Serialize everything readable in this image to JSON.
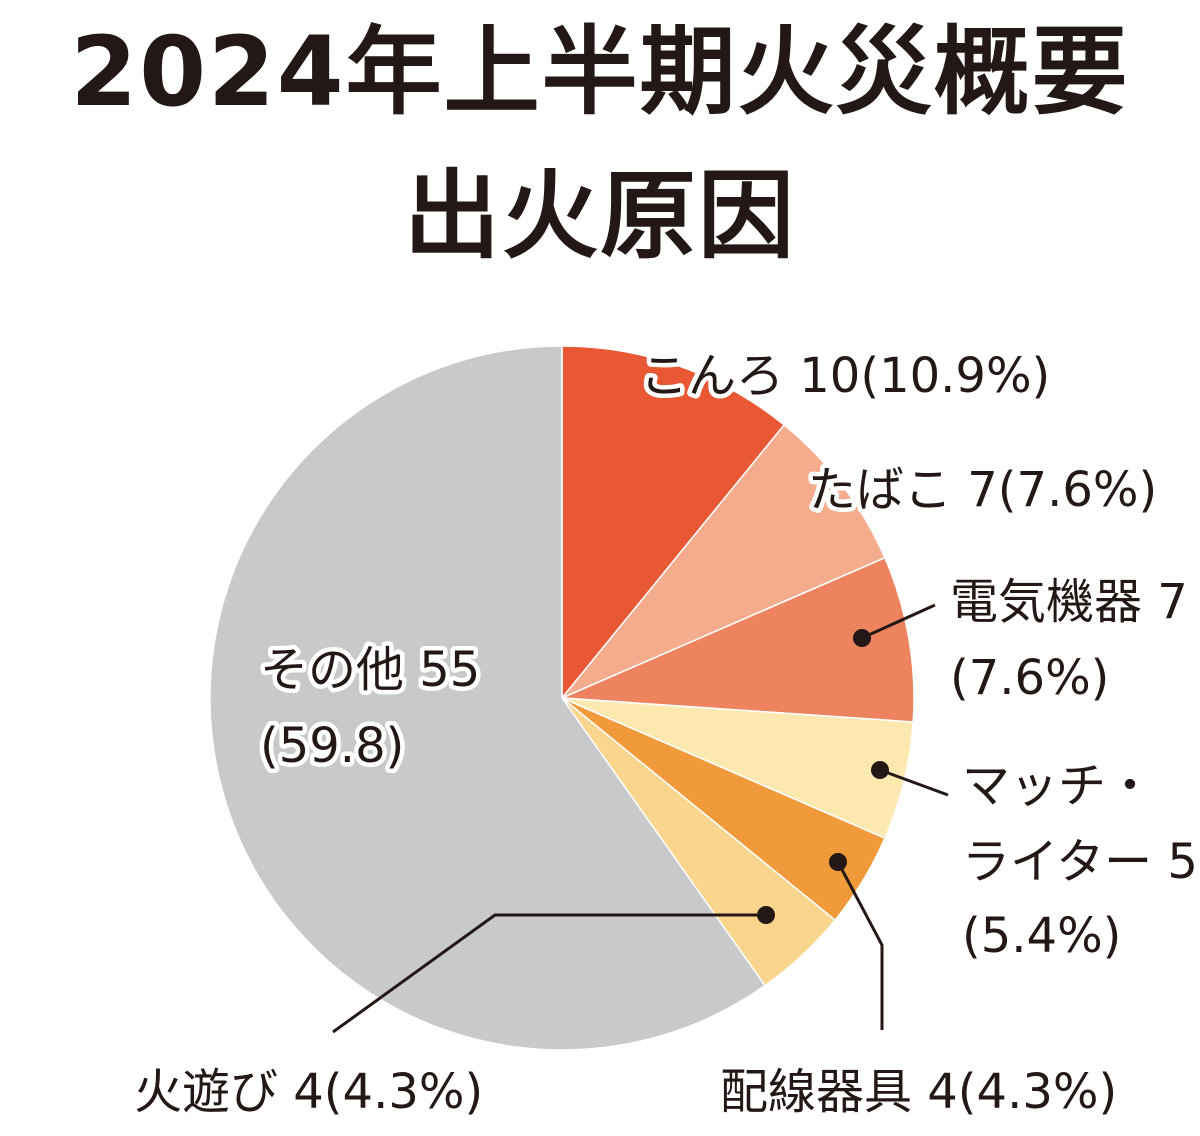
{
  "header": {
    "title": "2024年上半期火災概要",
    "subtitle": "出火原因"
  },
  "labels": {
    "konro": "こんろ 10(10.9%)",
    "tabako": "たばこ 7(7.6%)",
    "denki_1": "電気機器 7",
    "denki_2": "(7.6%)",
    "match_1": "マッチ・",
    "match_2": "ライター 5",
    "match_3": "(5.4%)",
    "haisen": "配線器具 4(4.3%)",
    "hiasobi": "火遊び 4(4.3%)",
    "sonota_1": "その他 55",
    "sonota_2": "(59.8)"
  },
  "chart_data": {
    "type": "pie",
    "title": "2024年上半期火災概要",
    "subtitle": "出火原因",
    "slices": [
      {
        "name": "こんろ",
        "value": 10,
        "percent": 10.9,
        "color": "#e85835"
      },
      {
        "name": "たばこ",
        "value": 7,
        "percent": 7.6,
        "color": "#f4ac8c"
      },
      {
        "name": "電気機器",
        "value": 7,
        "percent": 7.6,
        "color": "#ee835f"
      },
      {
        "name": "マッチ・ライター",
        "value": 5,
        "percent": 5.4,
        "color": "#fde8b0"
      },
      {
        "name": "配線器具",
        "value": 4,
        "percent": 4.3,
        "color": "#f19a3c"
      },
      {
        "name": "火遊び",
        "value": 4,
        "percent": 4.3,
        "color": "#fad58e"
      },
      {
        "name": "その他",
        "value": 55,
        "percent": 59.8,
        "color": "#c8c9ca"
      }
    ],
    "start": "12 o'clock",
    "direction": "clockwise"
  }
}
